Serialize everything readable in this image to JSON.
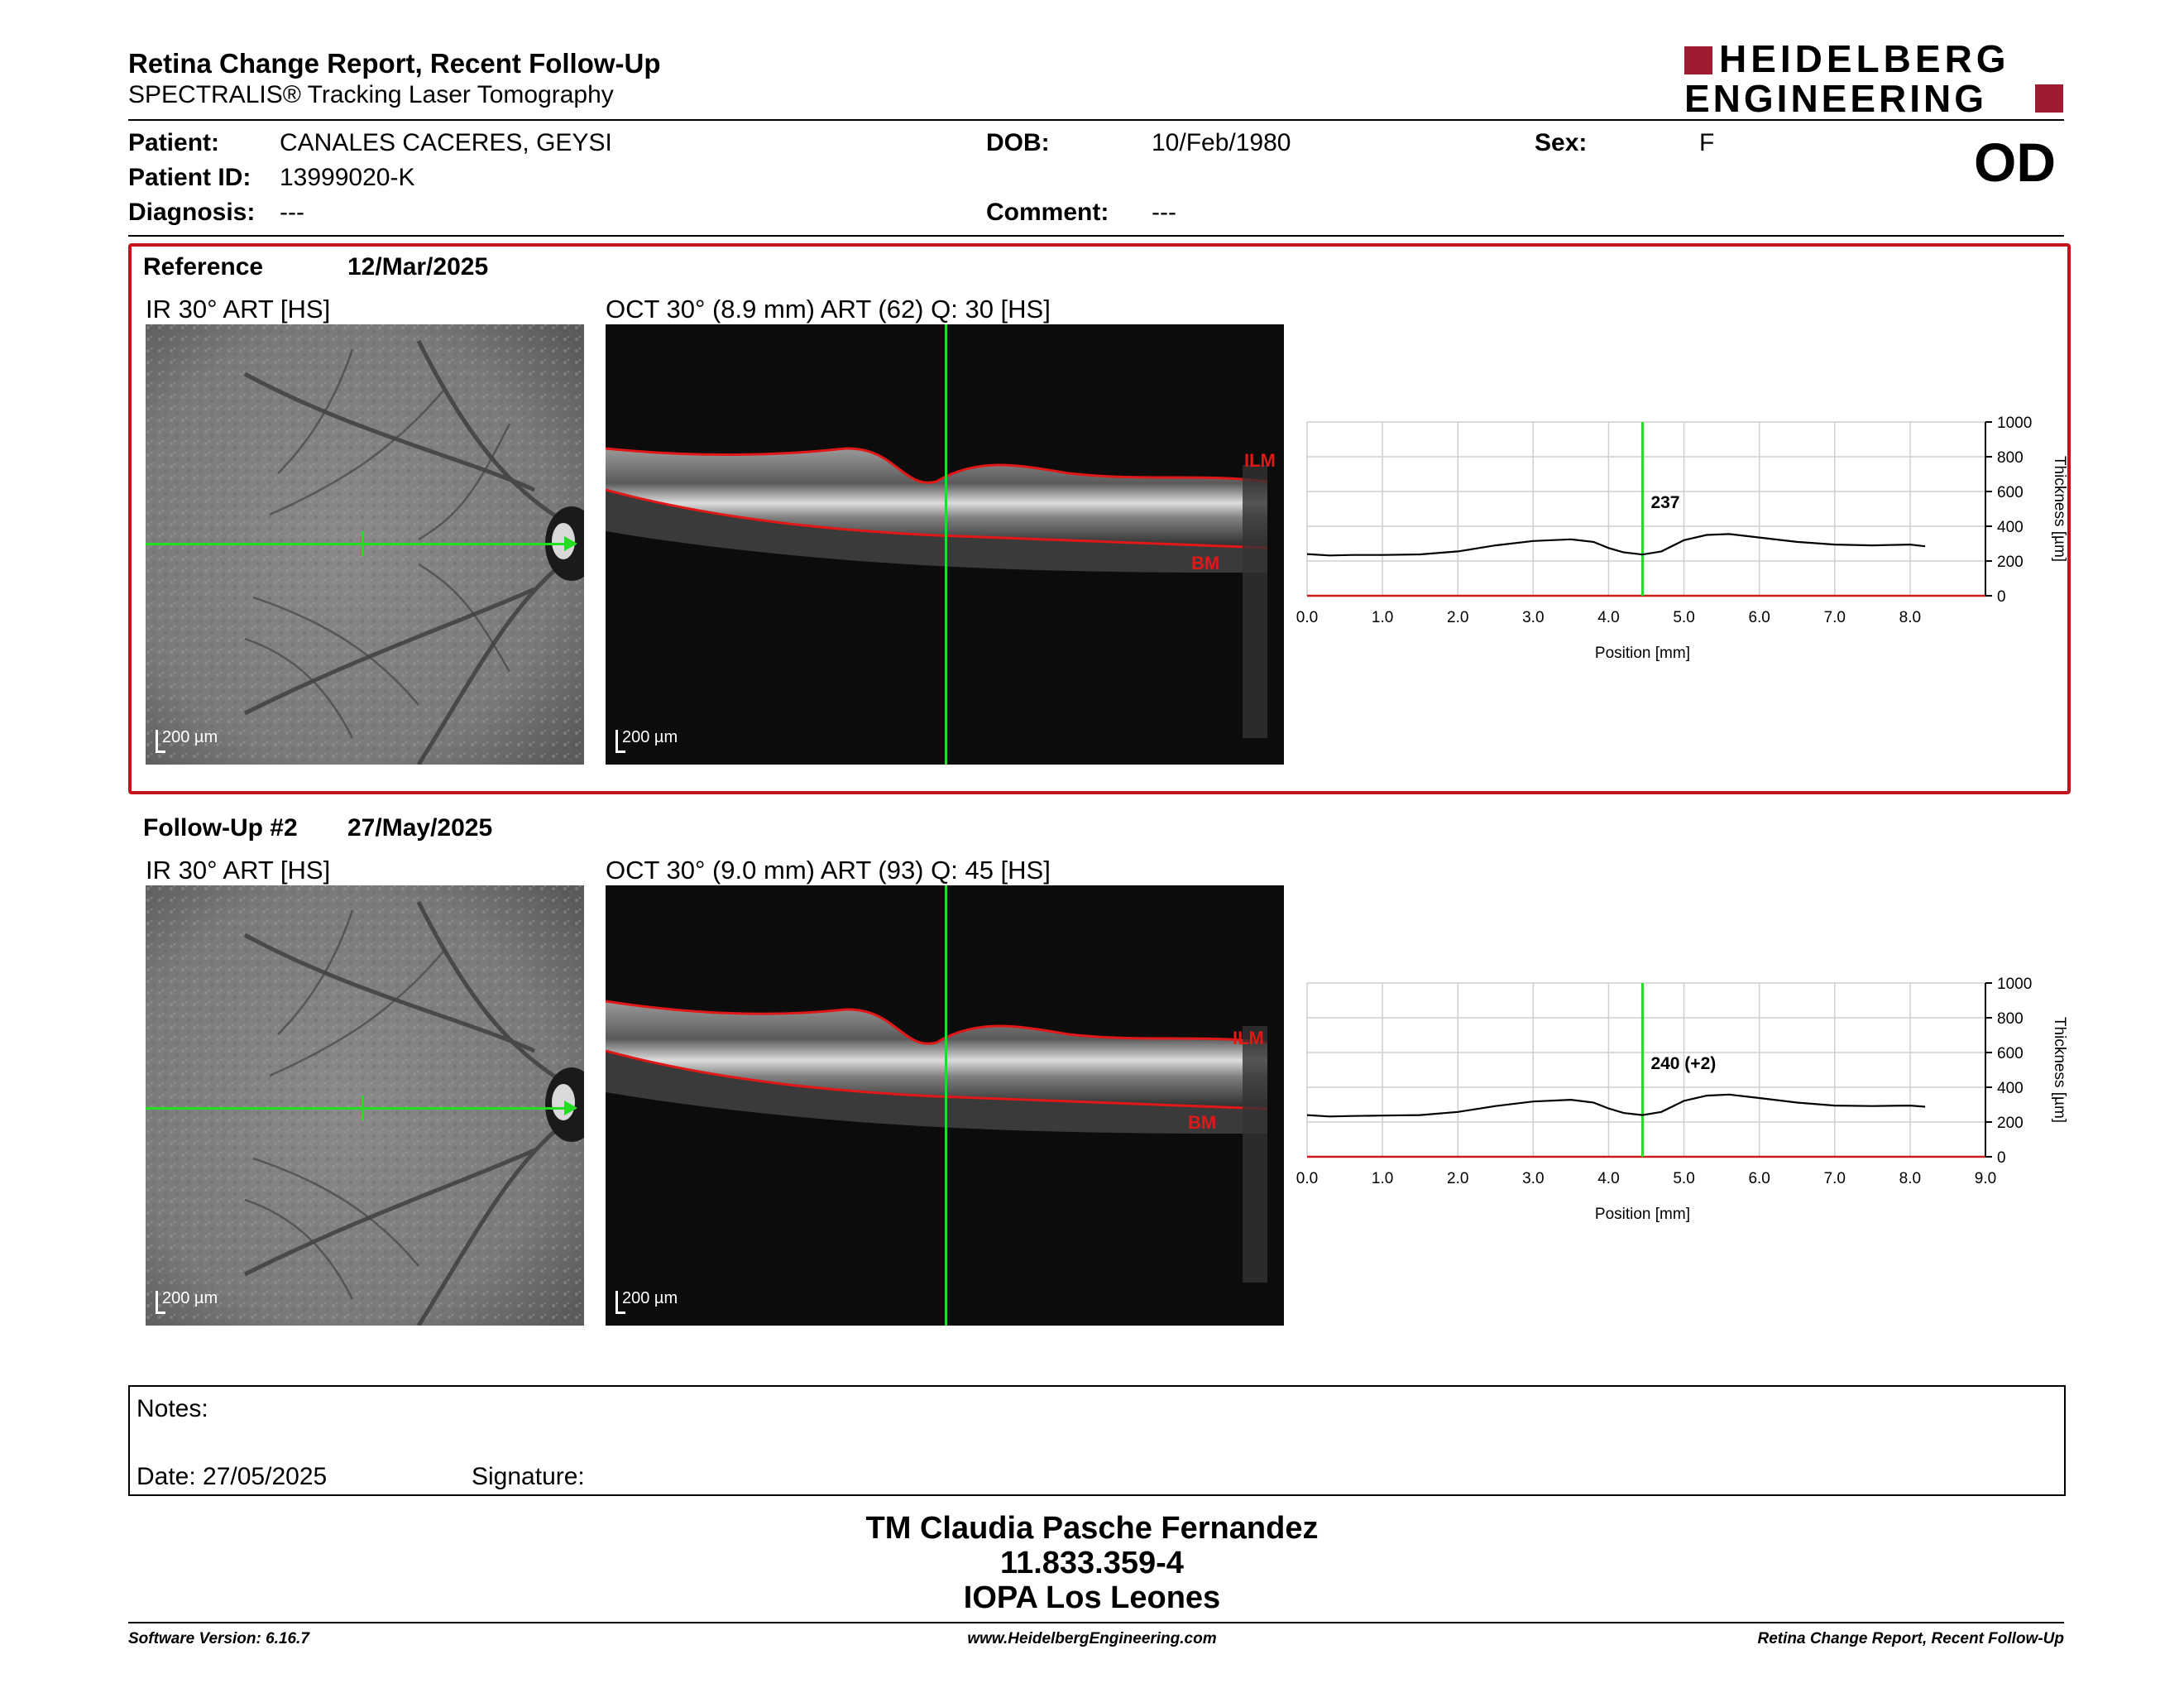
{
  "header": {
    "title": "Retina Change Report, Recent Follow-Up",
    "subtitle": "SPECTRALIS® Tracking Laser Tomography",
    "logo_line1": "HEIDELBERG",
    "logo_line2": "ENGINEERING",
    "eye": "OD",
    "brand_color": "#9e1b32"
  },
  "patient": {
    "patient_label": "Patient:",
    "patient_value": "CANALES CACERES, GEYSI",
    "id_label": "Patient ID:",
    "id_value": "13999020-K",
    "diagnosis_label": "Diagnosis:",
    "diagnosis_value": "---",
    "dob_label": "DOB:",
    "dob_value": "10/Feb/1980",
    "comment_label": "Comment:",
    "comment_value": "---",
    "sex_label": "Sex:",
    "sex_value": "F"
  },
  "reference": {
    "label": "Reference",
    "date": "12/Mar/2025",
    "ir_caption": "IR 30° ART [HS]",
    "oct_caption": "OCT 30° (8.9 mm) ART (62) Q: 30 [HS]",
    "ir_scale": "200 µm",
    "oct_scale": "200 µm",
    "ilm": "ILM",
    "bm": "BM",
    "box_color": "#c0151e"
  },
  "followup": {
    "label": "Follow-Up #2",
    "date": "27/May/2025",
    "ir_caption": "IR 30° ART [HS]",
    "oct_caption": "OCT 30° (9.0 mm) ART (93) Q: 45 [HS]",
    "ir_scale": "200 µm",
    "oct_scale": "200 µm",
    "ilm": "ILM",
    "bm": "BM"
  },
  "notes": {
    "notes_label": "Notes:",
    "date_label": "Date: 27/05/2025",
    "signature_label": "Signature:"
  },
  "signature_block": {
    "name": "TM Claudia Pasche Fernandez",
    "rut": "11.833.359-4",
    "place": "IOPA Los Leones"
  },
  "footer": {
    "left": "Software Version: 6.16.7",
    "center": "www.HeidelbergEngineering.com",
    "right": "Retina Change Report, Recent Follow-Up"
  },
  "chart_data": [
    {
      "type": "line",
      "xlabel": "Position [mm]",
      "ylabel": "Thickness [µm]",
      "xlim": [
        0,
        9
      ],
      "ylim": [
        0,
        1000
      ],
      "x_ticks": [
        "0.0",
        "1.0",
        "2.0",
        "3.0",
        "4.0",
        "5.0",
        "6.0",
        "7.0",
        "8.0"
      ],
      "y_ticks": [
        "0",
        "200",
        "400",
        "600",
        "800",
        "1000"
      ],
      "grid": true,
      "marker_x": 4.45,
      "marker_label": "237",
      "series": [
        {
          "x": [
            0.0,
            0.3,
            0.6,
            1.0,
            1.5,
            2.0,
            2.5,
            3.0,
            3.5,
            3.8,
            4.0,
            4.2,
            4.45,
            4.7,
            5.0,
            5.3,
            5.6,
            6.0,
            6.5,
            7.0,
            7.5,
            8.0,
            8.2
          ],
          "values": [
            240,
            232,
            235,
            235,
            238,
            255,
            290,
            315,
            325,
            310,
            275,
            250,
            237,
            255,
            320,
            350,
            355,
            335,
            310,
            295,
            290,
            295,
            285
          ]
        }
      ]
    },
    {
      "type": "line",
      "xlabel": "Position [mm]",
      "ylabel": "Thickness [µm]",
      "xlim": [
        0,
        9
      ],
      "ylim": [
        0,
        1000
      ],
      "x_ticks": [
        "0.0",
        "1.0",
        "2.0",
        "3.0",
        "4.0",
        "5.0",
        "6.0",
        "7.0",
        "8.0",
        "9.0"
      ],
      "y_ticks": [
        "0",
        "200",
        "400",
        "600",
        "800",
        "1000"
      ],
      "grid": true,
      "marker_x": 4.45,
      "marker_label": "240 (+2)",
      "series": [
        {
          "x": [
            0.0,
            0.3,
            0.6,
            1.0,
            1.5,
            2.0,
            2.5,
            3.0,
            3.5,
            3.8,
            4.0,
            4.2,
            4.45,
            4.7,
            5.0,
            5.3,
            5.6,
            6.0,
            6.5,
            7.0,
            7.5,
            8.0,
            8.2
          ],
          "values": [
            240,
            232,
            235,
            237,
            240,
            258,
            292,
            318,
            328,
            312,
            278,
            252,
            240,
            258,
            322,
            352,
            358,
            338,
            312,
            295,
            292,
            295,
            288
          ]
        }
      ]
    }
  ]
}
